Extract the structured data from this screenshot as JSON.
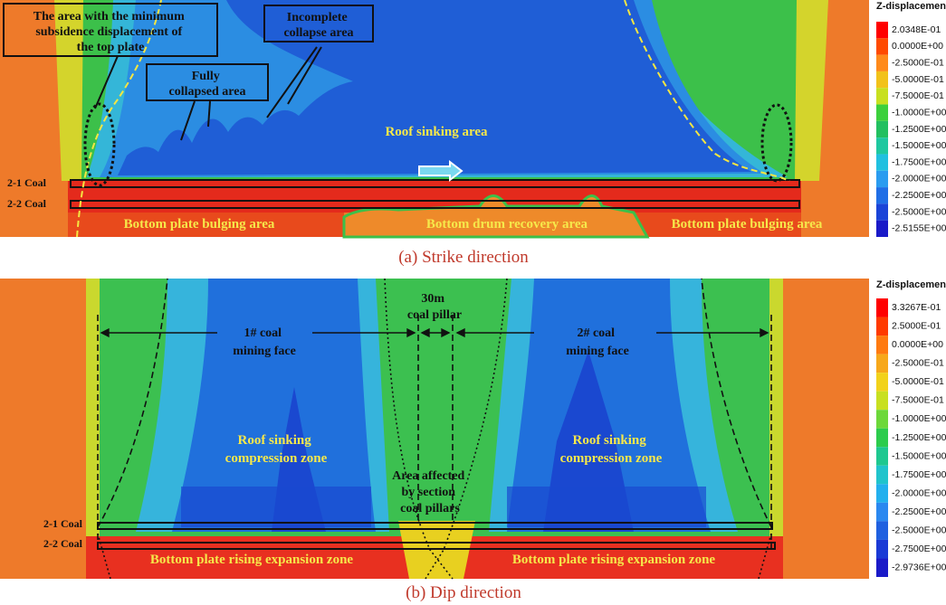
{
  "panels": [
    {
      "caption": "(a) Strike direction",
      "legend": {
        "title": "Z-displacement",
        "labels": [
          "2.0348E-01",
          "0.0000E+00",
          "-2.5000E-01",
          "-5.0000E-01",
          "-7.5000E-01",
          "-1.0000E+00",
          "-1.2500E+00",
          "-1.5000E+00",
          "-1.7500E+00",
          "-2.0000E+00",
          "-2.2500E+00",
          "-2.5000E+00",
          "-2.5155E+00"
        ],
        "colors": [
          "#ff0000",
          "#ff4a00",
          "#ff8a1a",
          "#f2c21a",
          "#c8e020",
          "#3cd03c",
          "#22c060",
          "#1ec8a0",
          "#20c0e0",
          "#2a9cf0",
          "#1f6ee6",
          "#1a44d8",
          "#1a1ac8"
        ]
      },
      "annotations": {
        "min_subsidence": [
          "The area with the minimum",
          "subsidence displacement of",
          "the top plate"
        ],
        "fully_collapsed": [
          "Fully",
          "collapsed area"
        ],
        "incomplete_collapse": [
          "Incomplete",
          "collapse area"
        ],
        "roof_sinking": "Roof sinking area",
        "coal_2_1": "2-1 Coal",
        "coal_2_2": "2-2 Coal",
        "bottom_left": "Bottom plate bulging area",
        "bottom_drum": "Bottom drum recovery area",
        "bottom_right": "Bottom plate bulging area"
      }
    },
    {
      "caption": "(b) Dip  direction",
      "legend": {
        "title": "Z-displacement",
        "labels": [
          "3.3267E-01",
          "2.5000E-01",
          "0.0000E+00",
          "-2.5000E-01",
          "-5.0000E-01",
          "-7.5000E-01",
          "-1.0000E+00",
          "-1.2500E+00",
          "-1.5000E+00",
          "-1.7500E+00",
          "-2.0000E+00",
          "-2.2500E+00",
          "-2.5000E+00",
          "-2.7500E+00",
          "-2.9736E+00"
        ],
        "colors": [
          "#ff0000",
          "#ff3a00",
          "#ff7a10",
          "#f7a81a",
          "#f2d21a",
          "#c8e020",
          "#6cd83a",
          "#2ccc4c",
          "#1ec890",
          "#20c4cc",
          "#22b0ee",
          "#2a88f0",
          "#1f60e0",
          "#1a3ad6",
          "#1a1ac8"
        ]
      },
      "annotations": {
        "face_1": [
          "1# coal",
          "mining face"
        ],
        "pillar": [
          "30m",
          "coal pillar"
        ],
        "face_2": [
          "2# coal",
          "mining face"
        ],
        "roof_left": [
          "Roof sinking",
          "compression zone"
        ],
        "roof_right": [
          "Roof sinking",
          "compression zone"
        ],
        "pillar_area": [
          "Area affected",
          "by section",
          "coal pillars"
        ],
        "coal_2_1": "2-1 Coal",
        "coal_2_2": "2-2 Coal",
        "bottom_left": "Bottom plate rising expansion zone",
        "bottom_right": "Bottom plate rising expansion zone"
      }
    }
  ]
}
